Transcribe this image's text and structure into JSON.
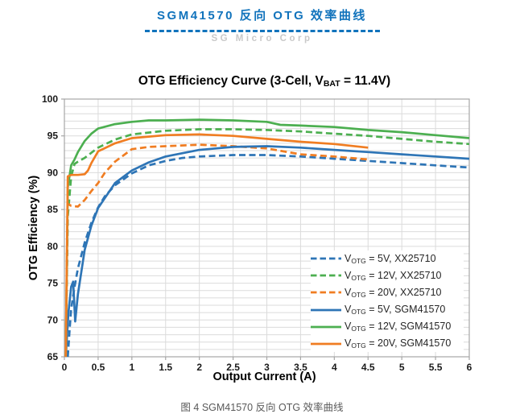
{
  "page": {
    "header": {
      "title": "SGM41570 反向 OTG 效率曲线",
      "subtitle": "SG Micro Corp",
      "accent_color": "#1173BC",
      "subtitle_color": "#C9C9C9"
    },
    "caption": "图 4 SGM41570 反向 OTG 效率曲线"
  },
  "chart_data": {
    "type": "line",
    "title_parts": {
      "pre": "OTG Efficiency Curve (3-Cell, V",
      "sub": "BAT",
      "post": " = 11.4V)"
    },
    "xlabel": "Output Current (A)",
    "ylabel": "OTG Efficiency (%)",
    "xlim": [
      0,
      6
    ],
    "ylim": [
      65,
      100
    ],
    "x_tick_step": 0.5,
    "y_tick_step": 5,
    "y_minor_step": 1,
    "grid": true,
    "legend_position": "inside-bottom-right",
    "axis_color": "#A6A6A6",
    "grid_color": "#DBDBDB",
    "series": [
      {
        "legend": {
          "prefix": "V",
          "sub": "OTG",
          "suffix": " = 5V, XX25710"
        },
        "color": "#2E75B6",
        "dash": true,
        "x": [
          0.05,
          0.08,
          0.1,
          0.15,
          0.2,
          0.3,
          0.4,
          0.5,
          0.6,
          0.75,
          1.0,
          1.25,
          1.5,
          1.75,
          2.0,
          2.5,
          3.0,
          3.5,
          4.0,
          4.5,
          5.0,
          5.5,
          6.0
        ],
        "y": [
          65,
          69,
          71.5,
          74.5,
          77,
          80.5,
          83.2,
          85.3,
          86.8,
          88.3,
          89.9,
          91.0,
          91.6,
          92.0,
          92.2,
          92.4,
          92.4,
          92.2,
          91.9,
          91.6,
          91.3,
          91.0,
          90.7
        ]
      },
      {
        "legend": {
          "prefix": "V",
          "sub": "OTG",
          "suffix": " = 12V, XX25710"
        },
        "color": "#4CAF50",
        "dash": true,
        "x": [
          0.02,
          0.05,
          0.1,
          0.15,
          0.2,
          0.3,
          0.4,
          0.5,
          0.75,
          1.0,
          1.5,
          2.0,
          2.5,
          3.0,
          3.5,
          4.0,
          4.5,
          5.0,
          5.5,
          6.0
        ],
        "y": [
          65,
          84,
          89.5,
          91.2,
          91.5,
          92.0,
          92.7,
          93.4,
          94.5,
          95.2,
          95.7,
          95.9,
          95.9,
          95.8,
          95.6,
          95.3,
          95.0,
          94.6,
          94.2,
          93.9
        ]
      },
      {
        "legend": {
          "prefix": "V",
          "sub": "OTG",
          "suffix": " = 20V, XX25710"
        },
        "color": "#F07D22",
        "dash": true,
        "x": [
          0.02,
          0.05,
          0.1,
          0.2,
          0.3,
          0.4,
          0.5,
          0.6,
          0.75,
          1.0,
          1.25,
          1.5,
          2.0,
          2.5,
          3.0,
          3.5,
          4.0,
          4.5
        ],
        "y": [
          65,
          85.8,
          85.5,
          85.4,
          86.3,
          87.5,
          88.6,
          90.0,
          91.5,
          93.2,
          93.5,
          93.6,
          93.8,
          93.6,
          93.3,
          92.5,
          92.2,
          91.8
        ]
      },
      {
        "legend": {
          "prefix": "V",
          "sub": "OTG",
          "suffix": " = 5V, SGM41570"
        },
        "color": "#2E75B6",
        "dash": false,
        "x": [
          0.02,
          0.06,
          0.1,
          0.13,
          0.16,
          0.2,
          0.3,
          0.4,
          0.5,
          0.75,
          1.0,
          1.25,
          1.5,
          2.0,
          2.5,
          3.0,
          3.5,
          4.0,
          4.5,
          5.0,
          5.5,
          6.0
        ],
        "y": [
          65,
          71,
          74.5,
          75.2,
          69.8,
          73.5,
          79.5,
          82.8,
          85.2,
          88.6,
          90.3,
          91.4,
          92.2,
          93.1,
          93.5,
          93.6,
          93.4,
          93.1,
          92.8,
          92.5,
          92.2,
          91.9
        ]
      },
      {
        "legend": {
          "prefix": "V",
          "sub": "OTG",
          "suffix": " = 12V, SGM41570"
        },
        "color": "#4CAF50",
        "dash": false,
        "x": [
          0.02,
          0.05,
          0.1,
          0.15,
          0.2,
          0.3,
          0.4,
          0.5,
          0.75,
          1.0,
          1.25,
          1.5,
          2.0,
          2.5,
          3.0,
          3.2,
          3.5,
          4.0,
          4.5,
          5.0,
          5.5,
          6.0
        ],
        "y": [
          65,
          88,
          91.0,
          91.8,
          92.8,
          94.3,
          95.3,
          96.0,
          96.6,
          96.9,
          97.1,
          97.1,
          97.2,
          97.1,
          96.9,
          96.5,
          96.4,
          96.2,
          95.8,
          95.5,
          95.1,
          94.7
        ]
      },
      {
        "legend": {
          "prefix": "V",
          "sub": "OTG",
          "suffix": " = 20V, SGM41570"
        },
        "color": "#F07D22",
        "dash": false,
        "x": [
          0.02,
          0.05,
          0.1,
          0.2,
          0.3,
          0.35,
          0.4,
          0.5,
          0.75,
          1.0,
          1.5,
          2.0,
          2.5,
          3.0,
          3.5,
          4.0,
          4.5
        ],
        "y": [
          65,
          89.5,
          89.7,
          89.7,
          89.8,
          90.3,
          91.3,
          92.9,
          94.0,
          94.7,
          95.1,
          95.2,
          95.0,
          94.6,
          94.2,
          93.9,
          93.4
        ]
      }
    ]
  }
}
